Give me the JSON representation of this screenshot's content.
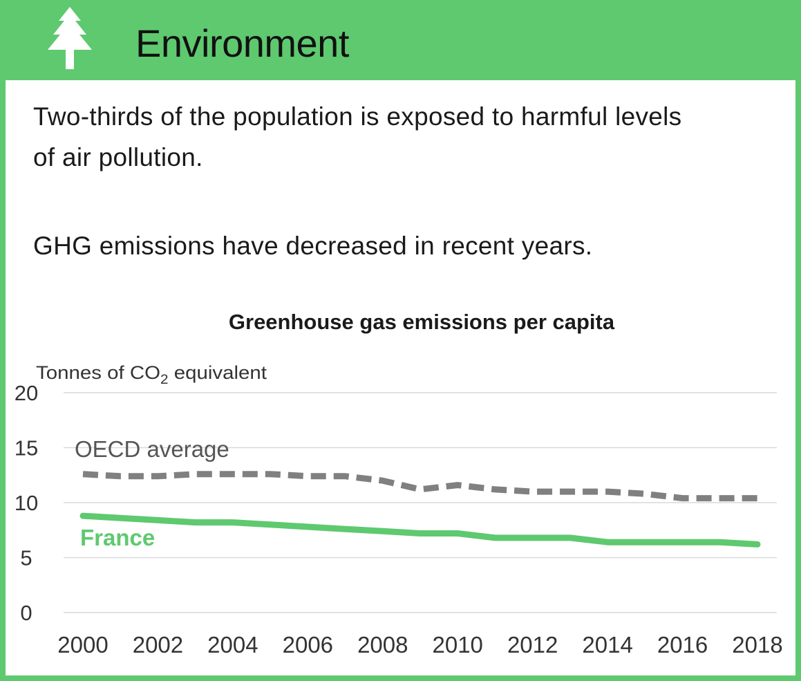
{
  "header": {
    "title": "Environment",
    "icon": "tree-icon",
    "background_color": "#5ec96f",
    "icon_color": "#ffffff"
  },
  "text": {
    "line1": "Two-thirds of the population is exposed to harmful levels",
    "line2": "of air pollution.",
    "line3": "GHG emissions have decreased in recent years."
  },
  "chart_data": {
    "type": "line",
    "title": "Greenhouse gas emissions per capita",
    "ylabel_prefix": "Tonnes of CO",
    "ylabel_sub": "2",
    "ylabel_suffix": " equivalent",
    "ylim": [
      0,
      20
    ],
    "yticks": [
      "0",
      "5",
      "10",
      "15",
      "20"
    ],
    "xlim": [
      2000,
      2018
    ],
    "xticks": [
      "2000",
      "2002",
      "2004",
      "2006",
      "2008",
      "2010",
      "2012",
      "2014",
      "2016",
      "2018"
    ],
    "grid": true,
    "x": [
      2000,
      2001,
      2002,
      2003,
      2004,
      2005,
      2006,
      2007,
      2008,
      2009,
      2010,
      2011,
      2012,
      2013,
      2014,
      2015,
      2016,
      2017,
      2018
    ],
    "series": [
      {
        "name": "OECD average",
        "color": "#808080",
        "style": "dashed",
        "values": [
          12.6,
          12.4,
          12.4,
          12.6,
          12.6,
          12.6,
          12.4,
          12.4,
          12.0,
          11.2,
          11.6,
          11.2,
          11.0,
          11.0,
          11.0,
          10.8,
          10.4,
          10.4,
          10.4
        ]
      },
      {
        "name": "France",
        "color": "#5ec96f",
        "style": "solid",
        "values": [
          8.8,
          8.6,
          8.4,
          8.2,
          8.2,
          8.0,
          7.8,
          7.6,
          7.4,
          7.2,
          7.2,
          6.8,
          6.8,
          6.8,
          6.4,
          6.4,
          6.4,
          6.4,
          6.2
        ]
      }
    ]
  }
}
